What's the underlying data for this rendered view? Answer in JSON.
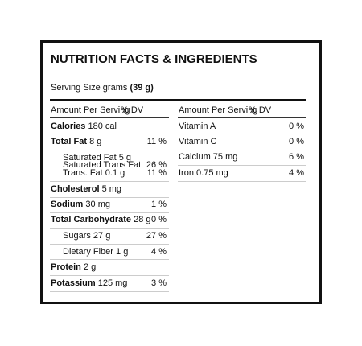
{
  "title": "NUTRITION FACTS & INGREDIENTS",
  "serving_size": {
    "label": "Serving Size grams",
    "amount": "(39 g)"
  },
  "left": {
    "header": {
      "amount": "Amount Per Serving",
      "dv": "% DV"
    },
    "rows": [
      {
        "name": "Calories",
        "amount": "180 cal"
      },
      {
        "name": "Total Fat",
        "amount": "8 g",
        "dv": "11 %"
      },
      {
        "name": "Saturated Fat",
        "amount": "5 g"
      },
      {
        "name": "Saturated Trans Fat",
        "dv": "26 %"
      },
      {
        "name": "Trans. Fat",
        "amount": "0.1 g",
        "dv": "11 %"
      },
      {
        "name": "Cholesterol",
        "amount": "5 mg"
      },
      {
        "name": "Sodium",
        "amount": "30 mg",
        "dv": "1 %"
      },
      {
        "name": "Total Carbohydrate",
        "amount": "28 g",
        "dv": "0 %"
      },
      {
        "name": "Sugars",
        "amount": "27 g",
        "dv": "27 %"
      },
      {
        "name": "Dietary Fiber",
        "amount": "1 g",
        "dv": "4 %"
      },
      {
        "name": "Protein",
        "amount": "2 g"
      },
      {
        "name": "Potassium",
        "amount": "125 mg",
        "dv": "3 %"
      }
    ]
  },
  "right": {
    "header": {
      "amount": "Amount Per Serving",
      "dv": "% DV"
    },
    "rows": [
      {
        "name": "Vitamin A",
        "dv": "0 %"
      },
      {
        "name": "Vitamin C",
        "dv": "0 %"
      },
      {
        "name": "Calcium",
        "amount": "75 mg",
        "dv": "6 %"
      },
      {
        "name": "Iron",
        "amount": "0.75 mg",
        "dv": "4 %"
      }
    ]
  }
}
